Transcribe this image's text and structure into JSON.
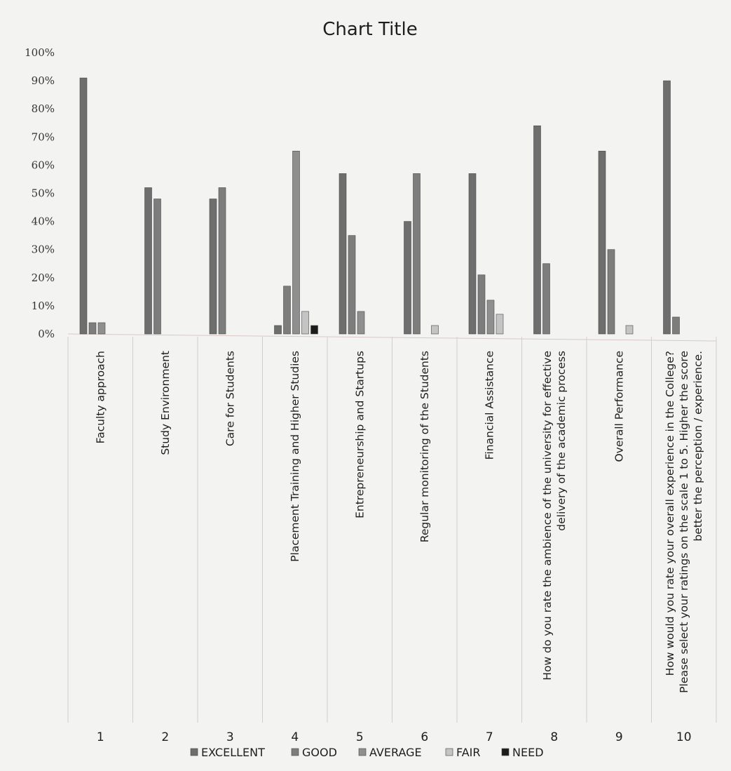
{
  "chart_data": {
    "type": "bar",
    "title": "Chart Title",
    "xlabel": "",
    "ylabel": "",
    "ylim": [
      0,
      100
    ],
    "y_ticks": [
      "0%",
      "10%",
      "20%",
      "30%",
      "40%",
      "50%",
      "60%",
      "70%",
      "80%",
      "90%",
      "100%"
    ],
    "legend_position": "bottom",
    "grid": false,
    "categories": [
      "1",
      "2",
      "3",
      "4",
      "5",
      "6",
      "7",
      "8",
      "9",
      "10"
    ],
    "category_labels": [
      [
        "Faculty approach"
      ],
      [
        "Study Environment"
      ],
      [
        "Care for Students"
      ],
      [
        "Placement Training and Higher Studies"
      ],
      [
        "Entrepreneurship and Startups"
      ],
      [
        "Regular monitoring of the Students"
      ],
      [
        "Financial Assistance"
      ],
      [
        "How do you rate the ambience of the university for effective",
        "delivery of the academic process"
      ],
      [
        "Overall Performance"
      ],
      [
        "How would you rate your overall experience in the College?",
        "Please select your ratings on the scale 1 to 5. Higher the score",
        "better the perception / experience."
      ]
    ],
    "series": [
      {
        "name": "EXCELLENT",
        "color": "#6e6e6e",
        "values": [
          91,
          52,
          48,
          3,
          57,
          40,
          57,
          74,
          65,
          90
        ]
      },
      {
        "name": "GOOD",
        "color": "#7d7d7d",
        "values": [
          4,
          48,
          52,
          17,
          35,
          57,
          21,
          25,
          30,
          6
        ]
      },
      {
        "name": "AVERAGE",
        "color": "#8f8f8f",
        "values": [
          4,
          0,
          0,
          65,
          8,
          0,
          12,
          0,
          0,
          0
        ]
      },
      {
        "name": "FAIR",
        "color": "#c4c4c4",
        "values": [
          0,
          0,
          0,
          8,
          0,
          3,
          7,
          0,
          3,
          0
        ]
      },
      {
        "name": "NEED",
        "color": "#1c1c1c",
        "values": [
          0,
          0,
          0,
          3,
          0,
          0,
          0,
          0,
          0,
          0
        ]
      }
    ]
  }
}
